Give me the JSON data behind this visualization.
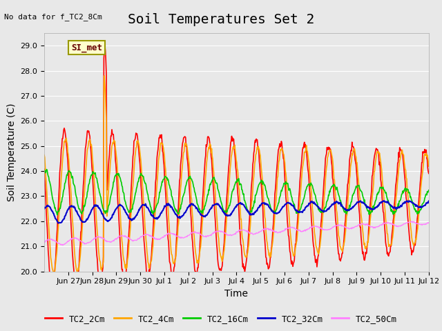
{
  "title": "Soil Temperatures Set 2",
  "subtitle": "No data for f_TC2_8Cm",
  "ylabel": "Soil Temperature (C)",
  "xlabel": "Time",
  "ylim": [
    20.0,
    29.5
  ],
  "yticks": [
    20.0,
    21.0,
    22.0,
    23.0,
    24.0,
    25.0,
    26.0,
    27.0,
    28.0,
    29.0
  ],
  "xtick_labels": [
    "Jun 27",
    "Jun 28",
    "Jun 29",
    "Jun 30",
    "Jul 1",
    "Jul 2",
    "Jul 3",
    "Jul 4",
    "Jul 5",
    "Jul 6",
    "Jul 7",
    "Jul 8",
    "Jul 9",
    "Jul 10",
    "Jul 11",
    "Jul 12"
  ],
  "xtick_positions": [
    1,
    2,
    3,
    4,
    5,
    6,
    7,
    8,
    9,
    10,
    11,
    12,
    13,
    14,
    15,
    16
  ],
  "xlim": [
    0,
    16
  ],
  "series_colors": {
    "TC2_2Cm": "#ff0000",
    "TC2_4Cm": "#ffa500",
    "TC2_16Cm": "#00cc00",
    "TC2_32Cm": "#0000cc",
    "TC2_50Cm": "#ff80ff"
  },
  "series_linewidths": {
    "TC2_2Cm": 1.2,
    "TC2_4Cm": 1.2,
    "TC2_16Cm": 1.2,
    "TC2_32Cm": 1.5,
    "TC2_50Cm": 1.0
  },
  "legend_label": "SI_met",
  "legend_box_bg": "#ffffcc",
  "legend_box_edge": "#999900",
  "background_color": "#e8e8e8",
  "plot_bg_color": "#e8e8e8",
  "grid_color": "#ffffff",
  "title_fontsize": 14,
  "axis_label_fontsize": 10,
  "tick_fontsize": 8
}
